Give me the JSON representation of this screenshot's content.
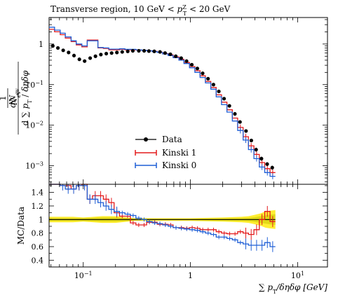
{
  "title": "Transverse region, 10 GeV < p_T^Z < 20 GeV",
  "title_parts": {
    "prefix": "Transverse region, 10 GeV < ",
    "p": "p",
    "sup": "Z",
    "sub": "T",
    "suffix": " < 20 GeV"
  },
  "ylabel_main": "1/N_ev dN_ev/d∑p_T/dηdφ",
  "ylabel_ratio": "MC/Data",
  "xlabel": "∑ p_T / δη δφ [GeV]",
  "xlabel_parts": {
    "sum": "∑",
    "p": "p",
    "sub": "T",
    "rest": "/δηδφ [GeV]"
  },
  "colors": {
    "data": "#000000",
    "kinski1": "#e31a1c",
    "kinski0": "#1f5fd6",
    "band_yellow": "#ffee33",
    "band_green": "#c8c800",
    "ref_line": "#000000"
  },
  "chart_data": [
    {
      "type": "line",
      "panel": "main",
      "xscale": "log",
      "yscale": "log",
      "xlim": [
        0.048,
        19
      ],
      "ylim": [
        0.00035,
        4.5
      ],
      "x_ticks": [
        0.1,
        1,
        10
      ],
      "x_tick_labels": [
        "10^-1",
        "1",
        "10^1"
      ],
      "y_ticks": [
        0.001,
        0.01,
        0.1,
        1
      ],
      "y_tick_labels": [
        "10^-3",
        "10^-2",
        "10^-1",
        "1"
      ],
      "legend_position": "center",
      "legend": [
        "Data",
        "Kinski 1",
        "Kinski 0"
      ],
      "series": [
        {
          "name": "Data",
          "style": "points",
          "x": [
            0.052,
            0.058,
            0.065,
            0.073,
            0.082,
            0.092,
            0.103,
            0.116,
            0.13,
            0.146,
            0.164,
            0.184,
            0.206,
            0.231,
            0.26,
            0.29,
            0.33,
            0.37,
            0.41,
            0.46,
            0.52,
            0.58,
            0.65,
            0.73,
            0.82,
            0.92,
            1.03,
            1.16,
            1.3,
            1.46,
            1.64,
            1.84,
            2.06,
            2.31,
            2.6,
            2.9,
            3.3,
            3.7,
            4.1,
            4.6,
            5.2,
            5.8
          ],
          "y": [
            0.9,
            0.8,
            0.7,
            0.62,
            0.52,
            0.42,
            0.38,
            0.45,
            0.5,
            0.55,
            0.58,
            0.6,
            0.62,
            0.64,
            0.66,
            0.68,
            0.68,
            0.68,
            0.67,
            0.66,
            0.64,
            0.6,
            0.56,
            0.5,
            0.45,
            0.38,
            0.31,
            0.25,
            0.19,
            0.14,
            0.1,
            0.068,
            0.045,
            0.03,
            0.019,
            0.012,
            0.0072,
            0.0042,
            0.0025,
            0.0015,
            0.0011,
            0.0009
          ]
        },
        {
          "name": "Kinski 1",
          "style": "step",
          "edges": [
            0.048,
            0.054,
            0.061,
            0.068,
            0.077,
            0.086,
            0.097,
            0.109,
            0.122,
            0.137,
            0.154,
            0.173,
            0.194,
            0.218,
            0.245,
            0.275,
            0.31,
            0.35,
            0.39,
            0.44,
            0.49,
            0.55,
            0.62,
            0.69,
            0.78,
            0.87,
            0.98,
            1.1,
            1.23,
            1.38,
            1.55,
            1.74,
            1.95,
            2.19,
            2.46,
            2.76,
            3.1,
            3.48,
            3.91,
            4.39,
            4.93,
            5.53,
            6.2
          ],
          "y": [
            2.3,
            2.0,
            1.7,
            1.4,
            1.15,
            0.95,
            0.85,
            1.25,
            1.25,
            0.8,
            0.78,
            0.72,
            0.72,
            0.74,
            0.72,
            0.72,
            0.71,
            0.7,
            0.68,
            0.66,
            0.63,
            0.58,
            0.54,
            0.48,
            0.42,
            0.35,
            0.28,
            0.22,
            0.165,
            0.12,
            0.085,
            0.056,
            0.037,
            0.024,
            0.015,
            0.0088,
            0.0052,
            0.0031,
            0.0019,
            0.0012,
            0.00085,
            0.00068
          ]
        },
        {
          "name": "Kinski 0",
          "style": "step",
          "edges": [
            0.048,
            0.054,
            0.061,
            0.068,
            0.077,
            0.086,
            0.097,
            0.109,
            0.122,
            0.137,
            0.154,
            0.173,
            0.194,
            0.218,
            0.245,
            0.275,
            0.31,
            0.35,
            0.39,
            0.44,
            0.49,
            0.55,
            0.62,
            0.69,
            0.78,
            0.87,
            0.98,
            1.1,
            1.23,
            1.38,
            1.55,
            1.74,
            1.95,
            2.19,
            2.46,
            2.76,
            3.1,
            3.48,
            3.91,
            4.39,
            4.93,
            5.53,
            6.2
          ],
          "y": [
            2.6,
            2.2,
            1.85,
            1.5,
            1.2,
            1.0,
            0.9,
            1.2,
            1.2,
            0.82,
            0.8,
            0.75,
            0.75,
            0.76,
            0.74,
            0.74,
            0.72,
            0.7,
            0.68,
            0.65,
            0.62,
            0.57,
            0.52,
            0.46,
            0.4,
            0.33,
            0.26,
            0.2,
            0.15,
            0.11,
            0.077,
            0.05,
            0.032,
            0.021,
            0.0127,
            0.0074,
            0.0043,
            0.0025,
            0.0015,
            0.00093,
            0.00068,
            0.00055
          ]
        }
      ]
    },
    {
      "type": "line",
      "panel": "ratio",
      "xscale": "log",
      "yscale": "linear",
      "xlim": [
        0.048,
        19
      ],
      "ylim": [
        0.3,
        1.52
      ],
      "y_ticks": [
        0.4,
        0.6,
        0.8,
        1.0,
        1.2,
        1.4
      ],
      "y_tick_labels": [
        "0.4",
        "0.6",
        "0.8",
        "1",
        "1.2",
        "1.4"
      ],
      "reference": 1.0,
      "series": [
        {
          "name": "Kinski 1",
          "edges": [
            0.048,
            0.054,
            0.061,
            0.068,
            0.077,
            0.086,
            0.097,
            0.109,
            0.122,
            0.137,
            0.154,
            0.173,
            0.194,
            0.218,
            0.245,
            0.275,
            0.31,
            0.35,
            0.39,
            0.44,
            0.49,
            0.55,
            0.62,
            0.69,
            0.78,
            0.87,
            0.98,
            1.1,
            1.23,
            1.38,
            1.55,
            1.74,
            1.95,
            2.19,
            2.46,
            2.76,
            3.1,
            3.48,
            3.91,
            4.39,
            4.93,
            5.53,
            6.2
          ],
          "y": [
            1.6,
            1.6,
            1.5,
            1.5,
            1.45,
            1.5,
            1.52,
            1.3,
            1.35,
            1.35,
            1.3,
            1.25,
            1.1,
            1.05,
            1.05,
            0.95,
            0.92,
            0.92,
            0.96,
            0.96,
            0.93,
            0.93,
            0.92,
            0.88,
            0.88,
            0.87,
            0.88,
            0.87,
            0.85,
            0.85,
            0.85,
            0.82,
            0.8,
            0.79,
            0.79,
            0.82,
            0.8,
            0.78,
            0.85,
            1.0,
            1.12,
            0.97
          ]
        },
        {
          "name": "Kinski 0",
          "edges": [
            0.048,
            0.054,
            0.061,
            0.068,
            0.077,
            0.086,
            0.097,
            0.109,
            0.122,
            0.137,
            0.154,
            0.173,
            0.194,
            0.218,
            0.245,
            0.275,
            0.31,
            0.35,
            0.39,
            0.44,
            0.49,
            0.55,
            0.62,
            0.69,
            0.78,
            0.87,
            0.98,
            1.1,
            1.23,
            1.38,
            1.55,
            1.74,
            1.95,
            2.19,
            2.46,
            2.76,
            3.1,
            3.48,
            3.91,
            4.39,
            4.93,
            5.53,
            6.2
          ],
          "y": [
            1.6,
            1.6,
            1.5,
            1.45,
            1.45,
            1.5,
            1.5,
            1.3,
            1.3,
            1.25,
            1.2,
            1.15,
            1.12,
            1.1,
            1.08,
            1.06,
            1.02,
            1.0,
            0.97,
            0.95,
            0.94,
            0.92,
            0.9,
            0.88,
            0.87,
            0.86,
            0.85,
            0.84,
            0.82,
            0.8,
            0.78,
            0.74,
            0.74,
            0.72,
            0.7,
            0.66,
            0.64,
            0.62,
            0.62,
            0.62,
            0.66,
            0.6
          ]
        }
      ],
      "band": {
        "x": [
          0.048,
          0.08,
          0.1,
          0.15,
          0.2,
          0.3,
          0.5,
          1,
          2,
          3,
          3.5,
          4,
          4.5,
          5,
          5.5,
          6.2
        ],
        "yellow_half": [
          0.04,
          0.04,
          0.03,
          0.05,
          0.05,
          0.02,
          0.02,
          0.02,
          0.03,
          0.04,
          0.05,
          0.07,
          0.09,
          0.12,
          0.13,
          0.14
        ],
        "green_half": [
          0.02,
          0.02,
          0.02,
          0.03,
          0.03,
          0.015,
          0.01,
          0.01,
          0.015,
          0.02,
          0.025,
          0.035,
          0.05,
          0.06,
          0.07,
          0.08
        ]
      }
    }
  ]
}
